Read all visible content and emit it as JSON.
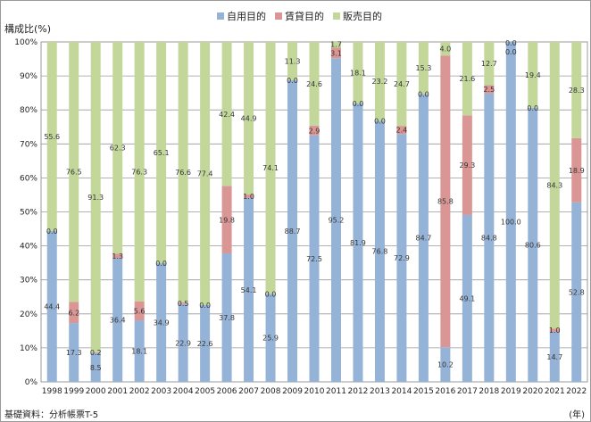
{
  "chart_data": {
    "type": "bar",
    "stacked": true,
    "ylabel": "構成比(%)",
    "xunit": "(年)",
    "source": "基礎資料：分析帳票T-5",
    "ylim": [
      0,
      100
    ],
    "yticks": [
      "0%",
      "10%",
      "20%",
      "30%",
      "40%",
      "50%",
      "60%",
      "70%",
      "80%",
      "90%",
      "100%"
    ],
    "legend_position": "top",
    "categories": [
      "1998",
      "1999",
      "2000",
      "2001",
      "2002",
      "2003",
      "2004",
      "2005",
      "2006",
      "2007",
      "2008",
      "2009",
      "2010",
      "2011",
      "2012",
      "2013",
      "2014",
      "2015",
      "2016",
      "2017",
      "2018",
      "2019",
      "2020",
      "2021",
      "2022"
    ],
    "series": [
      {
        "name": "自用目的",
        "color": "#95b3d7",
        "values": [
          44.4,
          17.3,
          8.5,
          36.4,
          18.1,
          34.9,
          22.9,
          22.6,
          37.8,
          54.1,
          25.9,
          88.7,
          72.5,
          95.2,
          81.9,
          76.8,
          72.9,
          84.7,
          10.2,
          49.1,
          84.8,
          100.0,
          80.6,
          14.7,
          52.8
        ],
        "labels": [
          "44.4",
          "17.3",
          "8.5",
          "36.4",
          "18.1",
          "34.9",
          "22.9",
          "22.6",
          "37.8",
          "54.1",
          "25.9",
          "88.7",
          "72.5",
          "95.2",
          "81.9",
          "76.8",
          "72.9",
          "84.7",
          "10.2",
          "49.1",
          "84.8",
          "100.0",
          "80.6",
          "14.7",
          "52.8"
        ]
      },
      {
        "name": "賃貸目的",
        "color": "#da9694",
        "values": [
          0.0,
          6.2,
          0.2,
          1.3,
          5.6,
          0.0,
          0.5,
          0.0,
          19.8,
          1.0,
          0.0,
          0.0,
          2.9,
          3.1,
          0.0,
          0.0,
          2.4,
          0.0,
          85.8,
          29.3,
          2.5,
          0.0,
          0.0,
          1.0,
          18.9
        ],
        "labels": [
          "0.0",
          "6.2",
          "0.2",
          "1.3",
          "5.6",
          "0.0",
          "0.5",
          "0.0",
          "19.8",
          "1.0",
          "0.0",
          "0.0",
          "2.9",
          "3.1",
          "0.0",
          "0.0",
          "2.4",
          "0.0",
          "85.8",
          "29.3",
          "2.5",
          "0.0",
          "0.0",
          "1.0",
          "18.9"
        ]
      },
      {
        "name": "販売目的",
        "color": "#c4d79b",
        "values": [
          55.6,
          76.5,
          91.3,
          62.3,
          76.3,
          65.1,
          76.6,
          77.4,
          42.4,
          44.9,
          74.1,
          11.3,
          24.6,
          1.7,
          18.1,
          23.2,
          24.7,
          15.3,
          4.0,
          21.6,
          12.7,
          0.0,
          19.4,
          84.3,
          28.3
        ],
        "labels": [
          "55.6",
          "76.5",
          "91.3",
          "62.3",
          "76.3",
          "65.1",
          "76.6",
          "77.4",
          "42.4",
          "44.9",
          "74.1",
          "11.3",
          "24.6",
          "1.7",
          "18.1",
          "23.2",
          "24.7",
          "15.3",
          "4.0",
          "21.6",
          "12.7",
          "0.0",
          "19.4",
          "84.3",
          "28.3"
        ]
      }
    ]
  }
}
